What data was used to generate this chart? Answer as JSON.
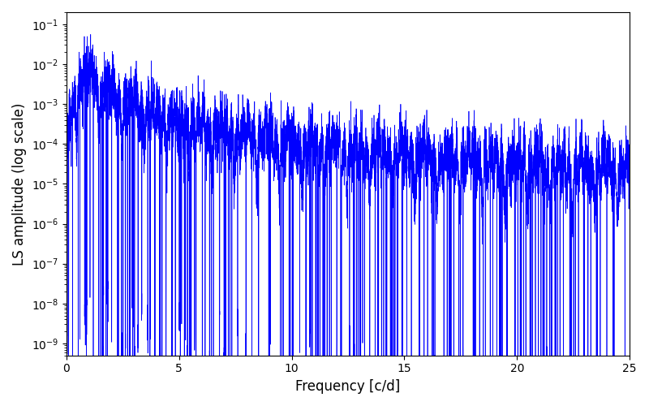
{
  "title": "",
  "xlabel": "Frequency [c/d]",
  "ylabel": "LS amplitude (log scale)",
  "line_color": "#0000ff",
  "line_width": 0.5,
  "xlim": [
    0,
    25
  ],
  "ylim_log": [
    5e-10,
    0.2
  ],
  "yscale": "log",
  "freq_min": 0.0,
  "freq_max": 25.0,
  "n_points": 8000,
  "seed": 7,
  "background_color": "#ffffff",
  "figsize": [
    8.0,
    5.0
  ],
  "dpi": 100
}
